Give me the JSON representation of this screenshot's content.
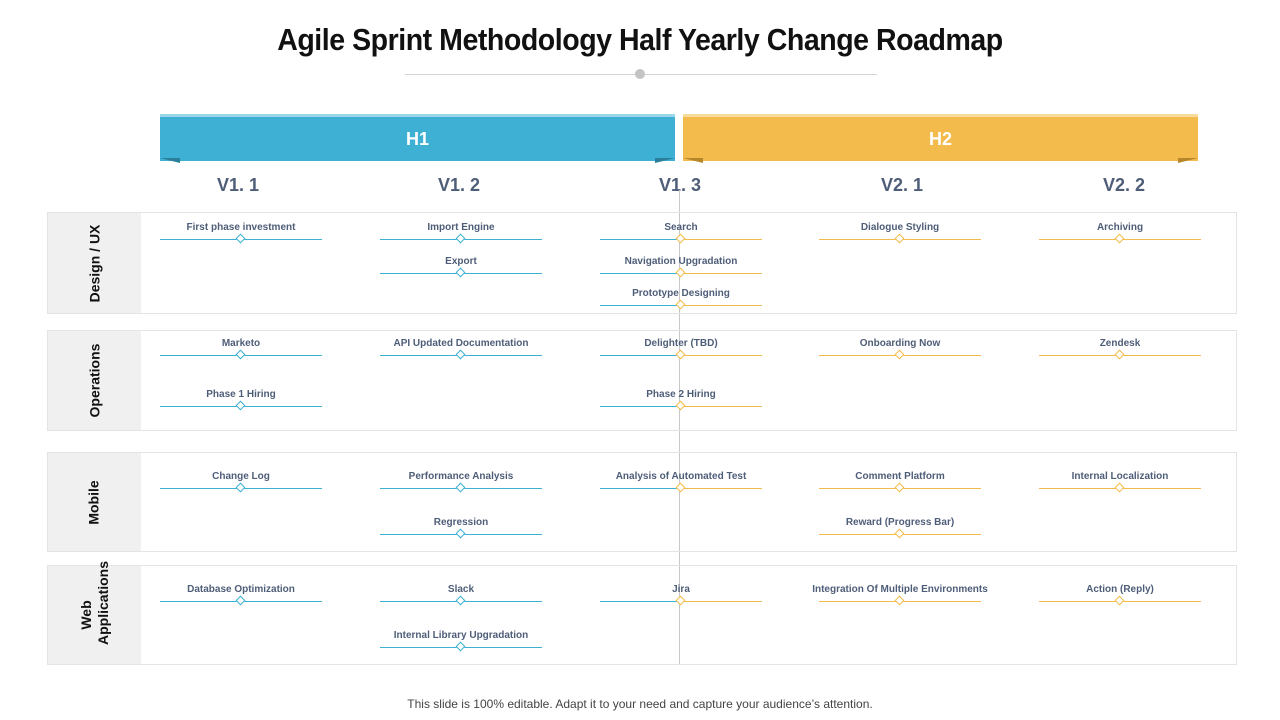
{
  "title": "Agile Sprint Methodology  Half Yearly Change Roadmap",
  "halves": [
    {
      "label": "H1",
      "color": "#3db0d4"
    },
    {
      "label": "H2",
      "color": "#f2bb4b"
    }
  ],
  "versions": [
    "V1. 1",
    "V1. 2",
    "V1. 3",
    "V2. 1",
    "V2. 2"
  ],
  "rows": [
    {
      "label": "Design / UX",
      "items": [
        {
          "col": 0,
          "slot": 0,
          "label": "First phase investment"
        },
        {
          "col": 1,
          "slot": 0,
          "label": "Import Engine"
        },
        {
          "col": 1,
          "slot": 1,
          "label": "Export"
        },
        {
          "col": 2,
          "slot": 0,
          "label": "Search"
        },
        {
          "col": 2,
          "slot": 1,
          "label": "Navigation Upgradation"
        },
        {
          "col": 2,
          "slot": 2,
          "label": "Prototype Designing"
        },
        {
          "col": 3,
          "slot": 0,
          "label": "Dialogue Styling"
        },
        {
          "col": 4,
          "slot": 0,
          "label": "Archiving"
        }
      ]
    },
    {
      "label": "Operations",
      "items": [
        {
          "col": 0,
          "slot": 0,
          "label": "Marketo"
        },
        {
          "col": 0,
          "slot": 1,
          "label": "Phase 1 Hiring"
        },
        {
          "col": 1,
          "slot": 0,
          "label": "API Updated Documentation"
        },
        {
          "col": 2,
          "slot": 0,
          "label": "Delighter (TBD)"
        },
        {
          "col": 2,
          "slot": 1,
          "label": "Phase 2 Hiring"
        },
        {
          "col": 3,
          "slot": 0,
          "label": "Onboarding Now"
        },
        {
          "col": 4,
          "slot": 0,
          "label": "Zendesk"
        }
      ]
    },
    {
      "label": "Mobile",
      "items": [
        {
          "col": 0,
          "slot": 0,
          "label": "Change Log"
        },
        {
          "col": 1,
          "slot": 0,
          "label": "Performance Analysis"
        },
        {
          "col": 1,
          "slot": 1,
          "label": "Regression"
        },
        {
          "col": 2,
          "slot": 0,
          "label": "Analysis of Automated Test"
        },
        {
          "col": 3,
          "slot": 0,
          "label": "Comment Platform"
        },
        {
          "col": 3,
          "slot": 1,
          "label": "Reward (Progress Bar)"
        },
        {
          "col": 4,
          "slot": 0,
          "label": "Internal Localization"
        }
      ]
    },
    {
      "label": "Web Applications",
      "items": [
        {
          "col": 0,
          "slot": 0,
          "label": "Database Optimization"
        },
        {
          "col": 1,
          "slot": 0,
          "label": "Slack"
        },
        {
          "col": 1,
          "slot": 1,
          "label": "Internal Library Upgradation"
        },
        {
          "col": 2,
          "slot": 0,
          "label": "Jira"
        },
        {
          "col": 3,
          "slot": 0,
          "label": "Integration Of Multiple Environments"
        },
        {
          "col": 4,
          "slot": 0,
          "label": "Action (Reply)"
        }
      ]
    }
  ],
  "footer": "This slide is 100% editable. Adapt it to your need and capture your audience’s attention."
}
